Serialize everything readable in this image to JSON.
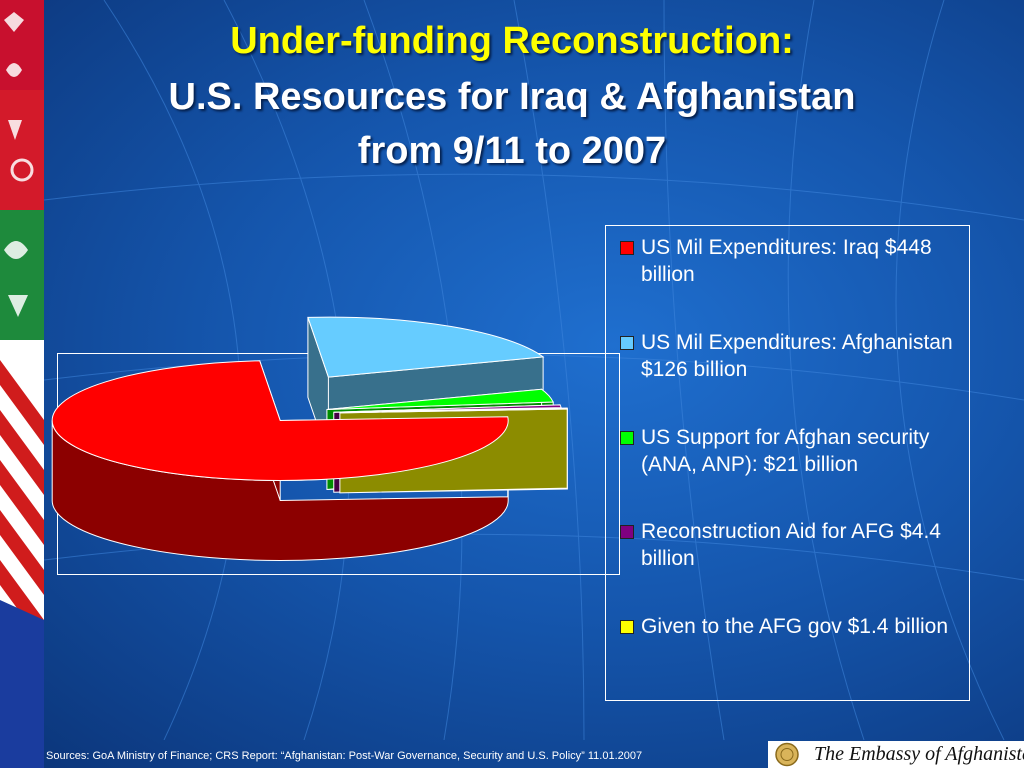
{
  "title": {
    "line1": "Under-funding Reconstruction:",
    "line2": "U.S. Resources for Iraq & Afghanistan",
    "line3": "from 9/11 to 2007"
  },
  "chart_data": {
    "type": "pie",
    "style": "3d-exploded",
    "slices": [
      {
        "label": "US Mil Expenditures: Iraq $448 billion",
        "value": 448,
        "color": "#ff0000"
      },
      {
        "label": "US Mil Expenditures: Afghanistan $126 billion",
        "value": 126,
        "color": "#66ccff"
      },
      {
        "label": "US Support for Afghan security (ANA, ANP): $21 billion",
        "value": 21,
        "color": "#00ff00"
      },
      {
        "label": "Reconstruction Aid for AFG $4.4 billion",
        "value": 4.4,
        "color": "#800080"
      },
      {
        "label": "Given to the AFG gov $1.4 billion",
        "value": 1.4,
        "color": "#ffff00"
      }
    ],
    "legend_position": "right"
  },
  "footer": {
    "sources": "Sources: GoA Ministry of Finance; CRS Report: “Afghanistan: Post-War Governance, Security and U.S. Policy” 11.01.2007",
    "embassy": "The Embassy of Afghanistan"
  }
}
